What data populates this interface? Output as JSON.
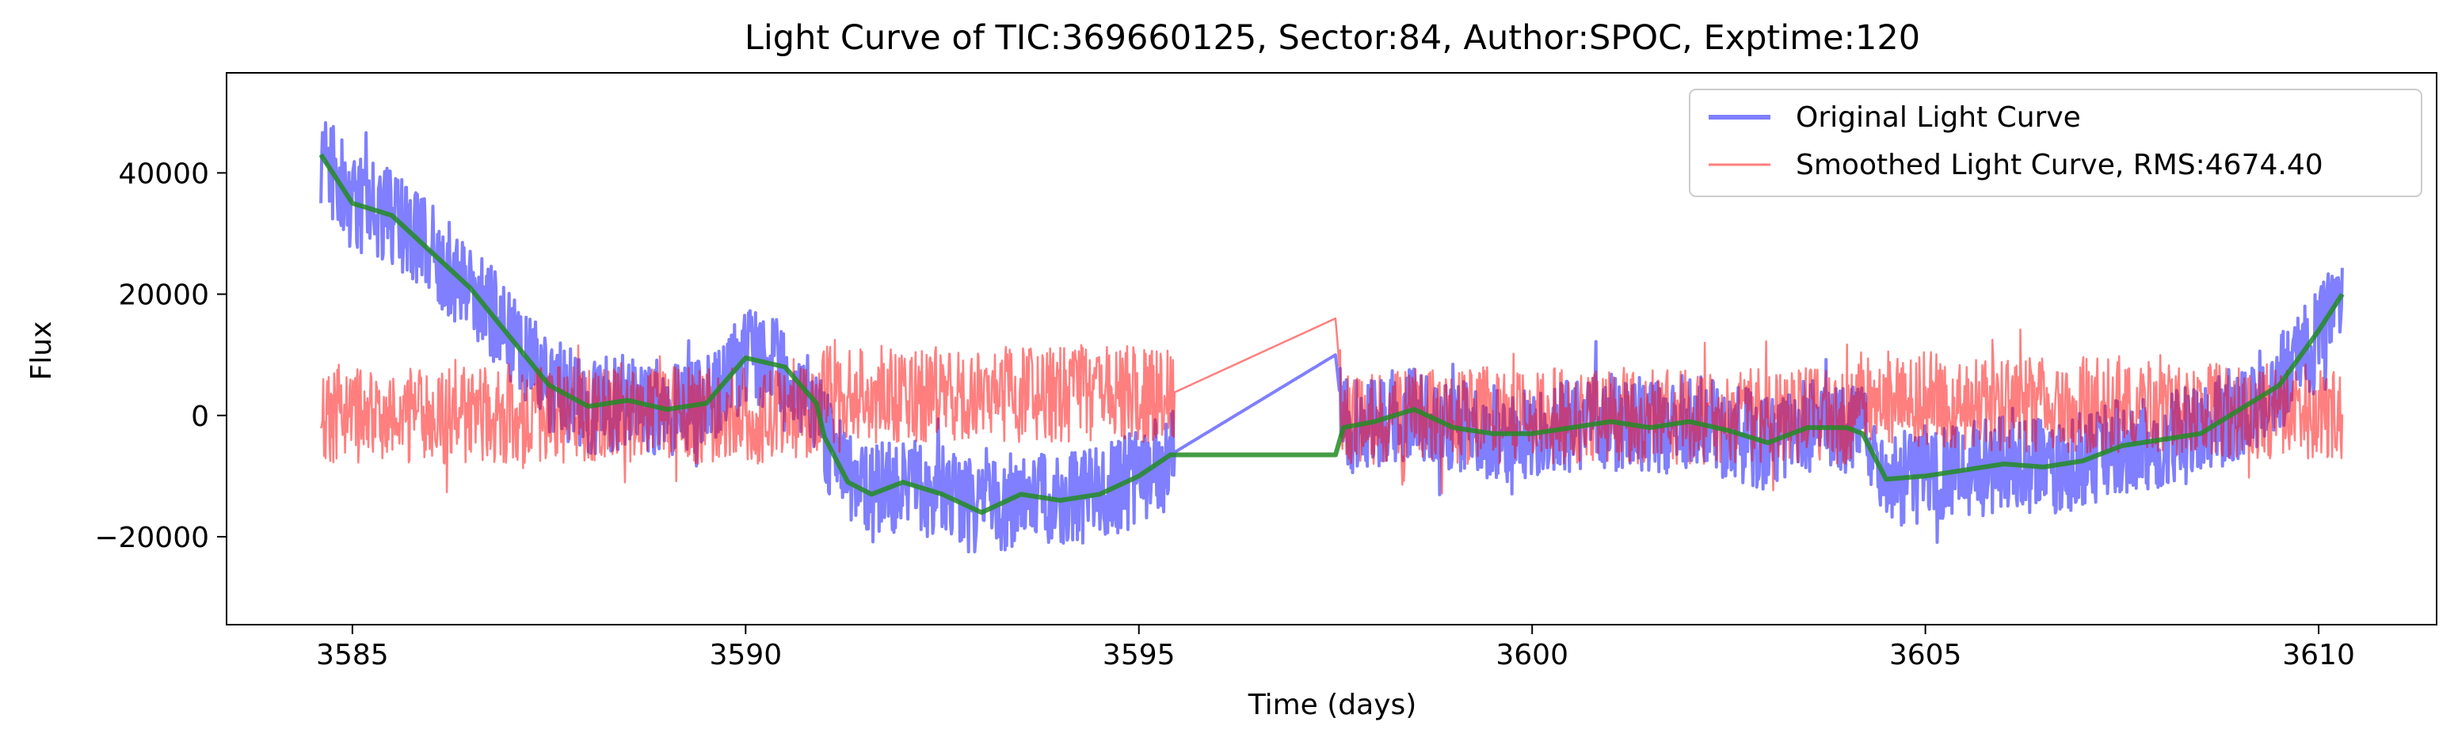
{
  "chart_data": {
    "type": "line",
    "title": "Light Curve of TIC:369660125, Sector:84, Author:SPOC, Exptime:120",
    "xlabel": "Time (days)",
    "ylabel": "Flux",
    "xlim": [
      3583.4,
      3611.5
    ],
    "ylim": [
      -34500,
      56500
    ],
    "x_ticks": [
      3585,
      3590,
      3595,
      3600,
      3605,
      3610
    ],
    "y_ticks": [
      -20000,
      0,
      20000,
      40000
    ],
    "grid": false,
    "legend_position": "top-right",
    "series": [
      {
        "name": "Original Light Curve",
        "color": "#0000ff",
        "opacity": 0.5,
        "noise": "high-frequency scatter, amplitude about ±8000",
        "x": [
          3584.6,
          3585.0,
          3585.5,
          3586.0,
          3586.5,
          3587.0,
          3587.5,
          3588.0,
          3588.5,
          3589.0,
          3589.5,
          3590.0,
          3590.5,
          3590.9,
          3591.0,
          3591.3,
          3591.6,
          3592.0,
          3592.5,
          3593.0,
          3593.5,
          3594.0,
          3594.5,
          3595.0,
          3595.4,
          3597.5,
          3597.6,
          3598.0,
          3598.5,
          3599.0,
          3599.5,
          3600.0,
          3600.5,
          3601.0,
          3601.5,
          3602.0,
          3602.5,
          3603.0,
          3603.5,
          3604.0,
          3604.2,
          3604.5,
          3605.0,
          3605.5,
          3606.0,
          3606.5,
          3607.0,
          3607.5,
          3608.0,
          3608.5,
          3609.0,
          3609.5,
          3610.0,
          3610.3
        ],
        "y": [
          43000,
          35000,
          33000,
          27000,
          21000,
          13000,
          5000,
          1500,
          2500,
          1000,
          2000,
          9500,
          8000,
          2000,
          -3500,
          -11000,
          -13000,
          -11000,
          -13000,
          -16000,
          -13000,
          -14000,
          -13000,
          -10000,
          -6500,
          10000,
          -2000,
          -1000,
          1000,
          -2000,
          -3000,
          -3000,
          -2000,
          -1000,
          -2000,
          -1000,
          -2500,
          -4500,
          -2000,
          -2000,
          -3000,
          -10500,
          -10000,
          -9000,
          -8000,
          -8500,
          -7500,
          -5000,
          -4000,
          -3000,
          1000,
          5000,
          14000,
          20000
        ]
      },
      {
        "name": "Smoothed Light Curve, RMS:4674.40",
        "color": "#ff0000",
        "opacity": 0.5,
        "noise": "high-frequency scatter, amplitude about ±8000",
        "x": [
          3584.6,
          3590.9,
          3591.0,
          3595.4,
          3597.5,
          3597.6,
          3604.0,
          3604.2,
          3610.3
        ],
        "y": [
          0,
          0,
          3500,
          3500,
          16000,
          0,
          0,
          3000,
          0
        ]
      },
      {
        "name": "",
        "color": "#228b22",
        "opacity": 0.85,
        "x": [
          3584.6,
          3585.0,
          3585.5,
          3586.0,
          3586.5,
          3587.0,
          3587.5,
          3588.0,
          3588.5,
          3589.0,
          3589.5,
          3590.0,
          3590.5,
          3590.9,
          3591.0,
          3591.3,
          3591.6,
          3592.0,
          3592.5,
          3593.0,
          3593.5,
          3594.0,
          3594.5,
          3595.0,
          3595.4,
          3597.5,
          3597.6,
          3598.0,
          3598.5,
          3599.0,
          3599.5,
          3600.0,
          3600.5,
          3601.0,
          3601.5,
          3602.0,
          3602.5,
          3603.0,
          3603.5,
          3604.0,
          3604.2,
          3604.5,
          3605.0,
          3605.5,
          3606.0,
          3606.5,
          3607.0,
          3607.5,
          3608.0,
          3608.5,
          3609.0,
          3609.5,
          3610.0,
          3610.3
        ],
        "y": [
          43000,
          35000,
          33000,
          27000,
          21000,
          13000,
          5000,
          1500,
          2500,
          1000,
          2000,
          9500,
          8000,
          2000,
          -3500,
          -11000,
          -13000,
          -11000,
          -13000,
          -16000,
          -13000,
          -14000,
          -13000,
          -10000,
          -6500,
          -6500,
          -2000,
          -1000,
          1000,
          -2000,
          -3000,
          -3000,
          -2000,
          -1000,
          -2000,
          -1000,
          -2500,
          -4500,
          -2000,
          -2000,
          -3000,
          -10500,
          -10000,
          -9000,
          -8000,
          -8500,
          -7500,
          -5000,
          -4000,
          -3000,
          1000,
          5000,
          14000,
          20000
        ]
      }
    ]
  }
}
